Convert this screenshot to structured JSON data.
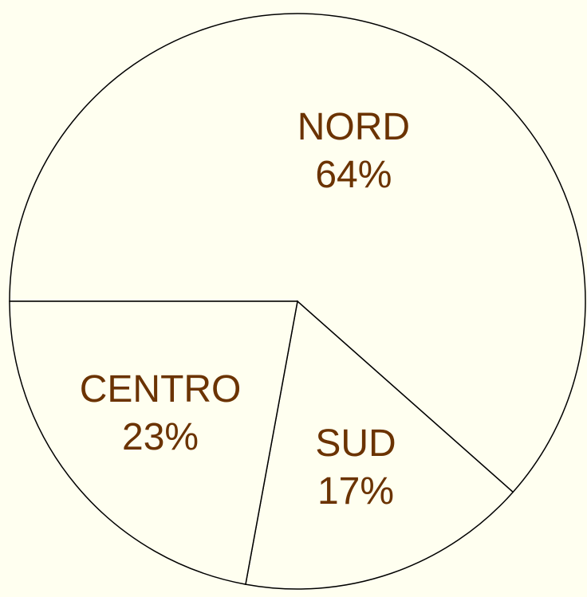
{
  "chart_data": {
    "type": "pie",
    "categories": [
      "NORD",
      "SUD",
      "CENTRO"
    ],
    "values": [
      64,
      17,
      23
    ],
    "value_labels": [
      "64%",
      "17%",
      "23%"
    ],
    "color": "#fffff0",
    "text_color": "#6b3300",
    "edge_color": "#000000",
    "background": "#fffff0"
  }
}
